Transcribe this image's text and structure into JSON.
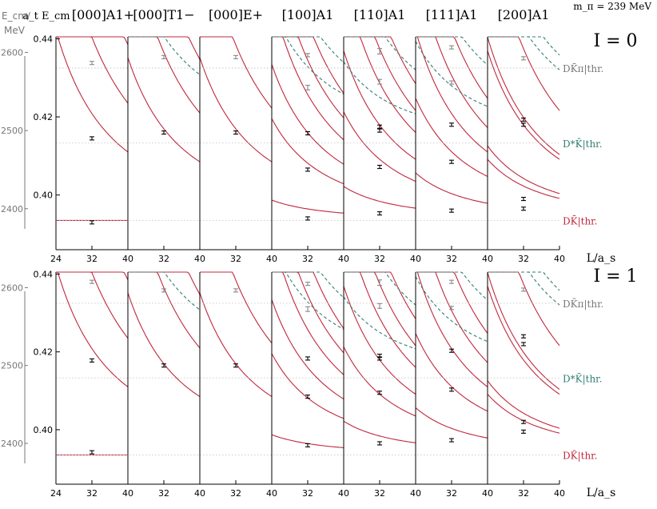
{
  "chart_data": {
    "type": "scatter",
    "mass_label": "m_π = 239 MeV",
    "energy_label": "a_t E_cm",
    "left_axis_label": [
      "E_cm/",
      "MeV"
    ],
    "left_axis_ticks": [
      2400,
      2500,
      2600
    ],
    "xlabel": "L/a_s",
    "x_ticks": [
      24,
      32,
      40
    ],
    "x_range": [
      24,
      40
    ],
    "y_ticks": [
      0.4,
      0.42,
      0.44
    ],
    "y_range": [
      0.386,
      0.4405
    ],
    "irreps": [
      "[000]A1+",
      "[000]T1−",
      "[000]E+",
      "[100]A1",
      "[110]A1",
      "[111]A1",
      "[200]A1"
    ],
    "thresholds": [
      {
        "label": "DK̄π|thr.",
        "value": 0.4325,
        "color": "#777777"
      },
      {
        "label": "D*K̄|thr.",
        "value": 0.4133,
        "color": "#2f7f73"
      },
      {
        "label": "DK̄|thr.",
        "value": 0.3935,
        "color": "#c0283d"
      }
    ],
    "panels": [
      {
        "isospin": "I = 0",
        "points": [
          {
            "irrep": 0,
            "x": 32,
            "y": 0.4338,
            "err": 0.0003,
            "faint": true
          },
          {
            "irrep": 0,
            "x": 32,
            "y": 0.4145,
            "err": 0.0003,
            "faint": false
          },
          {
            "irrep": 0,
            "x": 32,
            "y": 0.393,
            "err": 0.0003,
            "faint": false
          },
          {
            "irrep": 1,
            "x": 32,
            "y": 0.4353,
            "err": 0.0004,
            "faint": true
          },
          {
            "irrep": 1,
            "x": 32,
            "y": 0.416,
            "err": 0.0003,
            "faint": false
          },
          {
            "irrep": 2,
            "x": 32,
            "y": 0.4353,
            "err": 0.0004,
            "faint": true
          },
          {
            "irrep": 2,
            "x": 32,
            "y": 0.416,
            "err": 0.0003,
            "faint": false
          },
          {
            "irrep": 3,
            "x": 32,
            "y": 0.4358,
            "err": 0.0004,
            "faint": true
          },
          {
            "irrep": 3,
            "x": 32,
            "y": 0.4275,
            "err": 0.0006,
            "faint": true
          },
          {
            "irrep": 3,
            "x": 32,
            "y": 0.4158,
            "err": 0.0003,
            "faint": false
          },
          {
            "irrep": 3,
            "x": 32,
            "y": 0.4065,
            "err": 0.0003,
            "faint": false
          },
          {
            "irrep": 3,
            "x": 32,
            "y": 0.394,
            "err": 0.0003,
            "faint": false
          },
          {
            "irrep": 4,
            "x": 32,
            "y": 0.4368,
            "err": 0.0007,
            "faint": true
          },
          {
            "irrep": 4,
            "x": 32,
            "y": 0.429,
            "err": 0.0006,
            "faint": true
          },
          {
            "irrep": 4,
            "x": 32,
            "y": 0.4175,
            "err": 0.0004,
            "faint": false
          },
          {
            "irrep": 4,
            "x": 32,
            "y": 0.4165,
            "err": 0.0004,
            "faint": false
          },
          {
            "irrep": 4,
            "x": 32,
            "y": 0.4072,
            "err": 0.0003,
            "faint": false
          },
          {
            "irrep": 4,
            "x": 32,
            "y": 0.3953,
            "err": 0.0003,
            "faint": false
          },
          {
            "irrep": 5,
            "x": 32,
            "y": 0.4378,
            "err": 0.0004,
            "faint": true
          },
          {
            "irrep": 5,
            "x": 32,
            "y": 0.4288,
            "err": 0.0004,
            "faint": true
          },
          {
            "irrep": 5,
            "x": 32,
            "y": 0.418,
            "err": 0.0003,
            "faint": false
          },
          {
            "irrep": 5,
            "x": 32,
            "y": 0.4085,
            "err": 0.0004,
            "faint": false
          },
          {
            "irrep": 5,
            "x": 32,
            "y": 0.396,
            "err": 0.0003,
            "faint": false
          },
          {
            "irrep": 6,
            "x": 32,
            "y": 0.435,
            "err": 0.0004,
            "faint": true
          },
          {
            "irrep": 6,
            "x": 32,
            "y": 0.4193,
            "err": 0.0004,
            "faint": false
          },
          {
            "irrep": 6,
            "x": 32,
            "y": 0.418,
            "err": 0.0003,
            "faint": false
          },
          {
            "irrep": 6,
            "x": 32,
            "y": 0.399,
            "err": 0.0003,
            "faint": false
          },
          {
            "irrep": 6,
            "x": 32,
            "y": 0.3965,
            "err": 0.0003,
            "faint": false
          }
        ]
      },
      {
        "isospin": "I = 1",
        "points": [
          {
            "irrep": 0,
            "x": 32,
            "y": 0.438,
            "err": 0.0003,
            "faint": true
          },
          {
            "irrep": 0,
            "x": 32,
            "y": 0.4178,
            "err": 0.0003,
            "faint": false
          },
          {
            "irrep": 0,
            "x": 32,
            "y": 0.3942,
            "err": 0.0003,
            "faint": false
          },
          {
            "irrep": 1,
            "x": 32,
            "y": 0.4358,
            "err": 0.0004,
            "faint": true
          },
          {
            "irrep": 1,
            "x": 32,
            "y": 0.4165,
            "err": 0.0003,
            "faint": false
          },
          {
            "irrep": 2,
            "x": 32,
            "y": 0.4358,
            "err": 0.0004,
            "faint": true
          },
          {
            "irrep": 2,
            "x": 32,
            "y": 0.4165,
            "err": 0.0003,
            "faint": false
          },
          {
            "irrep": 3,
            "x": 32,
            "y": 0.4375,
            "err": 0.0004,
            "faint": true
          },
          {
            "irrep": 3,
            "x": 32,
            "y": 0.431,
            "err": 0.0006,
            "faint": true
          },
          {
            "irrep": 3,
            "x": 32,
            "y": 0.4183,
            "err": 0.0003,
            "faint": false
          },
          {
            "irrep": 3,
            "x": 32,
            "y": 0.4085,
            "err": 0.0003,
            "faint": false
          },
          {
            "irrep": 3,
            "x": 32,
            "y": 0.396,
            "err": 0.0003,
            "faint": false
          },
          {
            "irrep": 4,
            "x": 32,
            "y": 0.4378,
            "err": 0.0007,
            "faint": true
          },
          {
            "irrep": 4,
            "x": 32,
            "y": 0.4318,
            "err": 0.0006,
            "faint": true
          },
          {
            "irrep": 4,
            "x": 32,
            "y": 0.419,
            "err": 0.0004,
            "faint": false
          },
          {
            "irrep": 4,
            "x": 32,
            "y": 0.4183,
            "err": 0.0004,
            "faint": false
          },
          {
            "irrep": 4,
            "x": 32,
            "y": 0.4095,
            "err": 0.0003,
            "faint": false
          },
          {
            "irrep": 4,
            "x": 32,
            "y": 0.3965,
            "err": 0.0003,
            "faint": false
          },
          {
            "irrep": 5,
            "x": 32,
            "y": 0.438,
            "err": 0.0004,
            "faint": true
          },
          {
            "irrep": 5,
            "x": 32,
            "y": 0.4313,
            "err": 0.0004,
            "faint": true
          },
          {
            "irrep": 5,
            "x": 32,
            "y": 0.4203,
            "err": 0.0003,
            "faint": false
          },
          {
            "irrep": 5,
            "x": 32,
            "y": 0.4103,
            "err": 0.0004,
            "faint": false
          },
          {
            "irrep": 5,
            "x": 32,
            "y": 0.3973,
            "err": 0.0003,
            "faint": false
          },
          {
            "irrep": 6,
            "x": 32,
            "y": 0.436,
            "err": 0.0004,
            "faint": true
          },
          {
            "irrep": 6,
            "x": 32,
            "y": 0.424,
            "err": 0.0004,
            "faint": false
          },
          {
            "irrep": 6,
            "x": 32,
            "y": 0.422,
            "err": 0.0003,
            "faint": false
          },
          {
            "irrep": 6,
            "x": 32,
            "y": 0.402,
            "err": 0.0003,
            "faint": false
          },
          {
            "irrep": 6,
            "x": 32,
            "y": 0.3995,
            "err": 0.0003,
            "faint": false
          }
        ]
      }
    ],
    "colors": {
      "curve": "#c0283d",
      "dstar_curve": "#2f7f73",
      "threshold_light": "#bfbfbf",
      "point": "#000000",
      "faint_point": "#888888",
      "axis_gray": "#777777"
    }
  }
}
